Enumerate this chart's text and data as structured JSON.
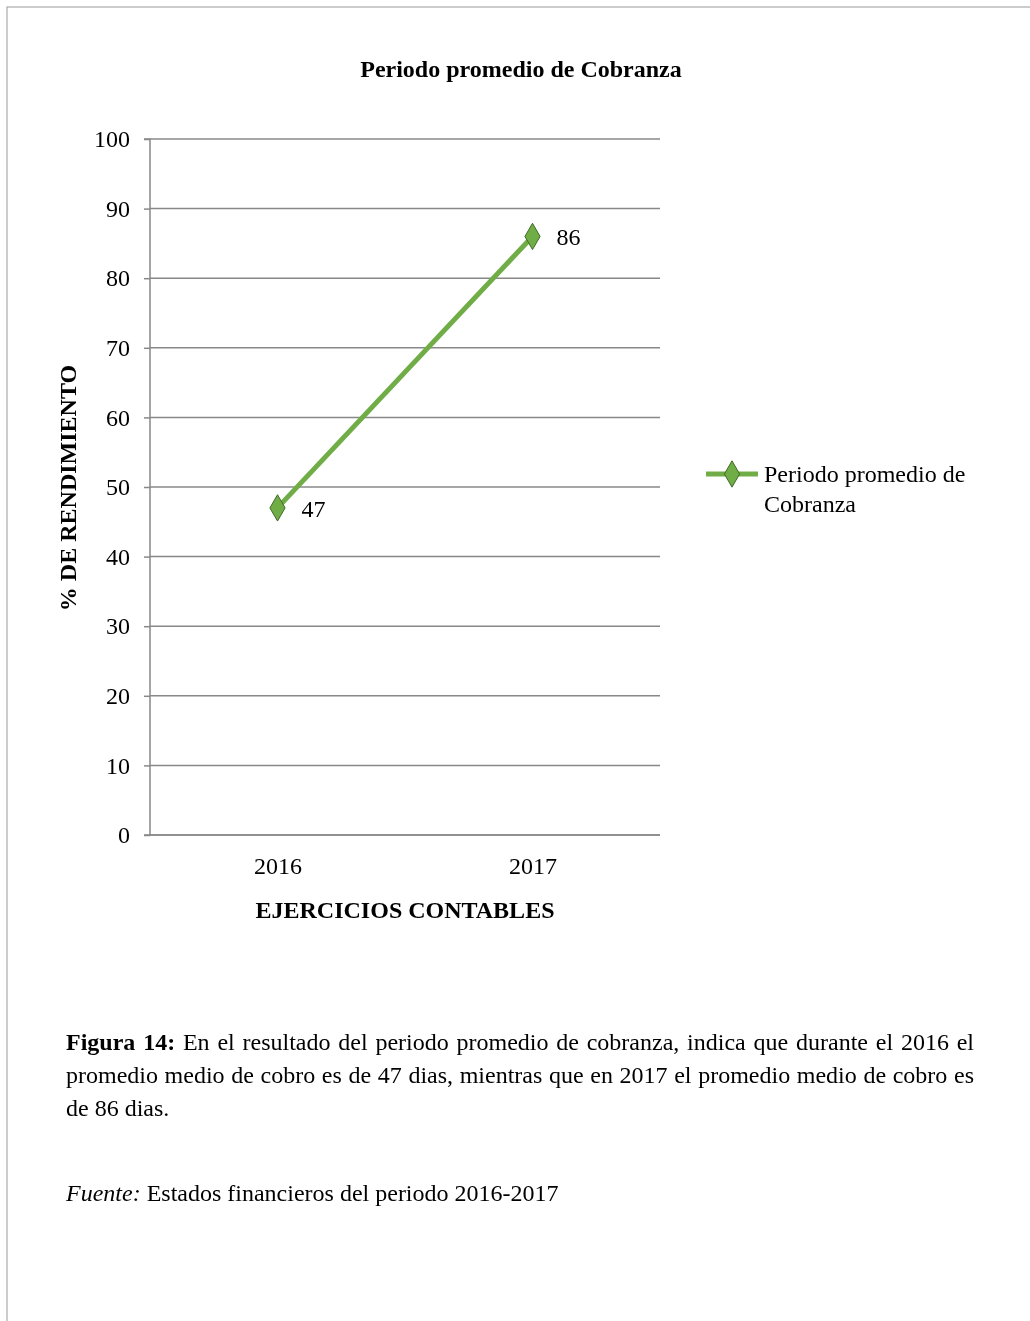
{
  "chart_data": {
    "type": "line",
    "title": "Periodo promedio de Cobranza",
    "xlabel": "EJERCICIOS CONTABLES",
    "ylabel": "% DE RENDIMIENTO",
    "categories": [
      "2016",
      "2017"
    ],
    "series": [
      {
        "name": "Periodo promedio de Cobranza",
        "color": "#70ad47",
        "values": [
          47,
          86
        ]
      }
    ],
    "ylim": [
      0,
      100
    ],
    "yticks": [
      0,
      10,
      20,
      30,
      40,
      50,
      60,
      70,
      80,
      90,
      100
    ],
    "grid": "y",
    "legend": "right",
    "marker": "diamond",
    "line_style": "solid",
    "data_labels": true,
    "annotations": [
      "Figura 14:",
      "En el resultado del periodo promedio de cobranza, indica que durante el 2016 el promedio medio de cobro es de 47 dias, mientras que en 2017 el promedio medio de cobro es de 86 dias.",
      "Fuente:",
      "Estados financieros del periodo 2016-2017"
    ]
  }
}
